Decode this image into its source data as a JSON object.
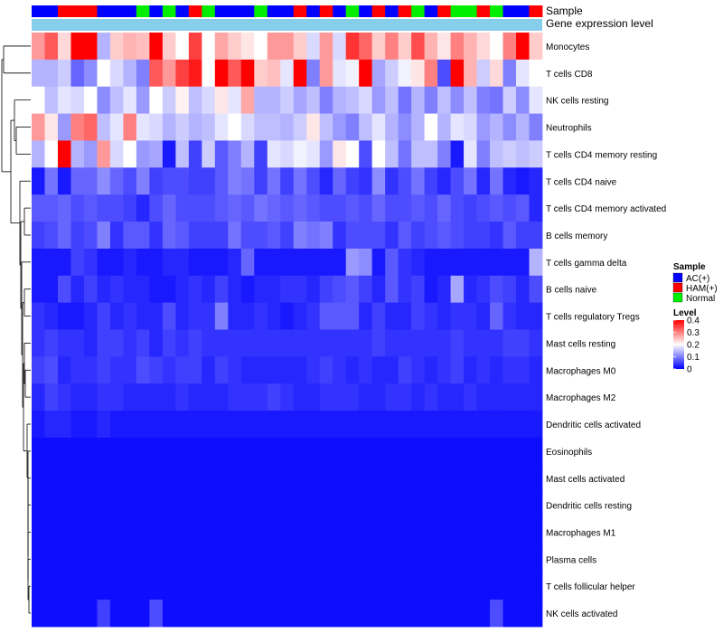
{
  "chart_data": {
    "type": "heatmap",
    "title": "",
    "annotation_rows": [
      "Sample",
      "Gene expression level"
    ],
    "samples": [
      "AC(+)",
      "AC(+)",
      "HAM(+)",
      "HAM(+)",
      "HAM(+)",
      "AC(+)",
      "AC(+)",
      "AC(+)",
      "Normal",
      "AC(+)",
      "Normal",
      "AC(+)",
      "HAM(+)",
      "Normal",
      "AC(+)",
      "AC(+)",
      "AC(+)",
      "Normal",
      "AC(+)",
      "AC(+)",
      "HAM(+)",
      "AC(+)",
      "HAM(+)",
      "AC(+)",
      "Normal",
      "AC(+)",
      "HAM(+)",
      "AC(+)",
      "HAM(+)",
      "Normal",
      "AC(+)",
      "HAM(+)",
      "Normal",
      "Normal",
      "HAM(+)",
      "Normal",
      "AC(+)",
      "AC(+)",
      "HAM(+)"
    ],
    "rows": [
      "Monocytes",
      "T cells CD8",
      "NK cells resting",
      "Neutrophils",
      "T cells CD4 memory resting",
      "T cells CD4 naive",
      "T cells CD4 memory activated",
      "B cells memory",
      "T cells gamma delta",
      "B cells naive",
      "T cells regulatory  Tregs",
      "Mast cells resting",
      "Macrophages M0",
      "Macrophages M2",
      "Dendritic cells activated",
      "Eosinophils",
      "Mast cells activated",
      "Dendritic cells resting",
      "Macrophages M1",
      "Plasma cells",
      "T cells follicular helper",
      "NK cells activated"
    ],
    "values": [
      [
        0.28,
        0.33,
        0.23,
        0.4,
        0.4,
        0.14,
        0.24,
        0.26,
        0.25,
        0.4,
        0.24,
        0.2,
        0.35,
        0.2,
        0.27,
        0.24,
        0.22,
        0.2,
        0.28,
        0.28,
        0.24,
        0.17,
        0.28,
        0.17,
        0.36,
        0.32,
        0.24,
        0.3,
        0.24,
        0.34,
        0.26,
        0.22,
        0.3,
        0.26,
        0.23,
        0.2,
        0.3,
        0.4,
        0.24
      ],
      [
        0.14,
        0.14,
        0.16,
        0.08,
        0.11,
        0.2,
        0.17,
        0.14,
        0.1,
        0.33,
        0.28,
        0.35,
        0.38,
        0.2,
        0.4,
        0.33,
        0.4,
        0.24,
        0.25,
        0.18,
        0.4,
        0.1,
        0.28,
        0.18,
        0.19,
        0.4,
        0.13,
        0.16,
        0.19,
        0.22,
        0.3,
        0.06,
        0.4,
        0.26,
        0.16,
        0.23,
        0.1,
        0.18,
        0.2
      ],
      [
        0.2,
        0.15,
        0.18,
        0.17,
        0.2,
        0.11,
        0.15,
        0.18,
        0.12,
        0.2,
        0.16,
        0.21,
        0.15,
        0.17,
        0.22,
        0.18,
        0.27,
        0.14,
        0.14,
        0.16,
        0.13,
        0.15,
        0.1,
        0.14,
        0.15,
        0.17,
        0.12,
        0.15,
        0.09,
        0.14,
        0.1,
        0.15,
        0.11,
        0.15,
        0.1,
        0.09,
        0.16,
        0.11,
        0.18
      ],
      [
        0.28,
        0.22,
        0.12,
        0.3,
        0.32,
        0.15,
        0.18,
        0.3,
        0.18,
        0.17,
        0.14,
        0.16,
        0.14,
        0.15,
        0.18,
        0.2,
        0.17,
        0.15,
        0.15,
        0.14,
        0.16,
        0.22,
        0.15,
        0.12,
        0.1,
        0.15,
        0.18,
        0.14,
        0.11,
        0.14,
        0.2,
        0.14,
        0.18,
        0.17,
        0.12,
        0.14,
        0.11,
        0.14,
        0.1
      ],
      [
        0.14,
        0.2,
        0.4,
        0.14,
        0.12,
        0.28,
        0.17,
        0.2,
        0.12,
        0.13,
        0.02,
        0.15,
        0.05,
        0.16,
        0.07,
        0.1,
        0.14,
        0.05,
        0.18,
        0.17,
        0.19,
        0.18,
        0.12,
        0.22,
        0.2,
        0.06,
        0.2,
        0.15,
        0.09,
        0.15,
        0.15,
        0.1,
        0.02,
        0.18,
        0.1,
        0.15,
        0.16,
        0.15,
        0.16
      ],
      [
        0.02,
        0.09,
        0.02,
        0.08,
        0.08,
        0.11,
        0.08,
        0.06,
        0.1,
        0.05,
        0.06,
        0.06,
        0.05,
        0.05,
        0.07,
        0.1,
        0.09,
        0.05,
        0.09,
        0.05,
        0.09,
        0.06,
        0.03,
        0.08,
        0.05,
        0.04,
        0.11,
        0.04,
        0.06,
        0.09,
        0.05,
        0.03,
        0.06,
        0.09,
        0.03,
        0.09,
        0.03,
        0.02,
        0.03
      ],
      [
        0.07,
        0.07,
        0.08,
        0.06,
        0.07,
        0.06,
        0.06,
        0.05,
        0.03,
        0.06,
        0.08,
        0.06,
        0.06,
        0.06,
        0.07,
        0.08,
        0.07,
        0.09,
        0.08,
        0.07,
        0.08,
        0.07,
        0.06,
        0.06,
        0.07,
        0.06,
        0.08,
        0.06,
        0.06,
        0.07,
        0.06,
        0.08,
        0.06,
        0.05,
        0.06,
        0.07,
        0.06,
        0.07,
        0.03
      ],
      [
        0.05,
        0.06,
        0.08,
        0.05,
        0.06,
        0.1,
        0.04,
        0.07,
        0.07,
        0.04,
        0.08,
        0.07,
        0.05,
        0.05,
        0.05,
        0.09,
        0.06,
        0.06,
        0.07,
        0.05,
        0.1,
        0.09,
        0.1,
        0.04,
        0.06,
        0.06,
        0.06,
        0.04,
        0.07,
        0.05,
        0.06,
        0.07,
        0.06,
        0.05,
        0.05,
        0.04,
        0.07,
        0.05,
        0.05
      ],
      [
        0.02,
        0.02,
        0.02,
        0.05,
        0.04,
        0.02,
        0.02,
        0.03,
        0.02,
        0.02,
        0.03,
        0.03,
        0.02,
        0.02,
        0.02,
        0.03,
        0.08,
        0.02,
        0.02,
        0.02,
        0.02,
        0.02,
        0.02,
        0.02,
        0.12,
        0.11,
        0.02,
        0.07,
        0.04,
        0.03,
        0.02,
        0.02,
        0.02,
        0.02,
        0.02,
        0.02,
        0.02,
        0.02,
        0.14
      ],
      [
        0.02,
        0.02,
        0.06,
        0.03,
        0.05,
        0.03,
        0.04,
        0.03,
        0.03,
        0.02,
        0.02,
        0.03,
        0.04,
        0.03,
        0.05,
        0.03,
        0.02,
        0.03,
        0.03,
        0.04,
        0.04,
        0.03,
        0.05,
        0.06,
        0.07,
        0.05,
        0.03,
        0.07,
        0.04,
        0.05,
        0.02,
        0.03,
        0.13,
        0.03,
        0.04,
        0.06,
        0.05,
        0.03,
        0.06
      ],
      [
        0.04,
        0.03,
        0.02,
        0.02,
        0.03,
        0.05,
        0.03,
        0.04,
        0.03,
        0.03,
        0.06,
        0.03,
        0.04,
        0.04,
        0.1,
        0.03,
        0.03,
        0.04,
        0.03,
        0.02,
        0.03,
        0.04,
        0.07,
        0.07,
        0.07,
        0.03,
        0.05,
        0.03,
        0.03,
        0.05,
        0.04,
        0.03,
        0.04,
        0.04,
        0.03,
        0.08,
        0.04,
        0.03,
        0.03
      ],
      [
        0.04,
        0.05,
        0.04,
        0.04,
        0.03,
        0.05,
        0.05,
        0.04,
        0.05,
        0.03,
        0.05,
        0.04,
        0.05,
        0.04,
        0.04,
        0.04,
        0.04,
        0.04,
        0.04,
        0.04,
        0.04,
        0.04,
        0.04,
        0.04,
        0.04,
        0.04,
        0.05,
        0.04,
        0.04,
        0.04,
        0.04,
        0.04,
        0.05,
        0.04,
        0.04,
        0.04,
        0.05,
        0.05,
        0.04
      ],
      [
        0.05,
        0.06,
        0.03,
        0.04,
        0.04,
        0.05,
        0.04,
        0.04,
        0.06,
        0.05,
        0.04,
        0.05,
        0.05,
        0.03,
        0.05,
        0.04,
        0.03,
        0.03,
        0.03,
        0.03,
        0.03,
        0.04,
        0.05,
        0.04,
        0.03,
        0.04,
        0.03,
        0.03,
        0.05,
        0.04,
        0.03,
        0.04,
        0.05,
        0.03,
        0.04,
        0.03,
        0.04,
        0.04,
        0.03
      ],
      [
        0.03,
        0.05,
        0.04,
        0.03,
        0.03,
        0.04,
        0.04,
        0.03,
        0.03,
        0.03,
        0.03,
        0.04,
        0.03,
        0.03,
        0.03,
        0.04,
        0.04,
        0.04,
        0.05,
        0.04,
        0.03,
        0.03,
        0.04,
        0.04,
        0.04,
        0.03,
        0.03,
        0.04,
        0.04,
        0.03,
        0.04,
        0.03,
        0.03,
        0.04,
        0.03,
        0.03,
        0.03,
        0.03,
        0.03
      ],
      [
        0.02,
        0.03,
        0.03,
        0.02,
        0.02,
        0.03,
        0.02,
        0.02,
        0.02,
        0.02,
        0.02,
        0.02,
        0.02,
        0.02,
        0.02,
        0.02,
        0.02,
        0.02,
        0.02,
        0.02,
        0.02,
        0.02,
        0.02,
        0.02,
        0.02,
        0.02,
        0.02,
        0.02,
        0.02,
        0.02,
        0.02,
        0.02,
        0.02,
        0.02,
        0.02,
        0.02,
        0.02,
        0.02,
        0.02
      ],
      [
        0.01,
        0.01,
        0.01,
        0.01,
        0.01,
        0.01,
        0.01,
        0.01,
        0.01,
        0.01,
        0.01,
        0.01,
        0.01,
        0.01,
        0.01,
        0.01,
        0.01,
        0.01,
        0.01,
        0.01,
        0.01,
        0.01,
        0.01,
        0.01,
        0.01,
        0.01,
        0.01,
        0.01,
        0.01,
        0.01,
        0.01,
        0.01,
        0.01,
        0.01,
        0.01,
        0.01,
        0.01,
        0.01,
        0.01
      ],
      [
        0.01,
        0.01,
        0.01,
        0.01,
        0.01,
        0.01,
        0.01,
        0.01,
        0.01,
        0.01,
        0.01,
        0.01,
        0.01,
        0.01,
        0.01,
        0.01,
        0.01,
        0.01,
        0.01,
        0.01,
        0.01,
        0.01,
        0.01,
        0.01,
        0.01,
        0.01,
        0.01,
        0.01,
        0.01,
        0.01,
        0.01,
        0.01,
        0.01,
        0.01,
        0.01,
        0.01,
        0.01,
        0.01,
        0.01
      ],
      [
        0.01,
        0.01,
        0.01,
        0.01,
        0.01,
        0.01,
        0.01,
        0.01,
        0.01,
        0.01,
        0.01,
        0.01,
        0.01,
        0.01,
        0.01,
        0.01,
        0.01,
        0.01,
        0.01,
        0.01,
        0.01,
        0.01,
        0.01,
        0.01,
        0.01,
        0.01,
        0.01,
        0.01,
        0.01,
        0.01,
        0.01,
        0.01,
        0.01,
        0.01,
        0.01,
        0.01,
        0.01,
        0.01,
        0.01
      ],
      [
        0.01,
        0.01,
        0.01,
        0.01,
        0.01,
        0.01,
        0.01,
        0.01,
        0.01,
        0.01,
        0.01,
        0.01,
        0.01,
        0.01,
        0.01,
        0.01,
        0.01,
        0.01,
        0.01,
        0.01,
        0.01,
        0.01,
        0.01,
        0.01,
        0.01,
        0.01,
        0.01,
        0.01,
        0.01,
        0.01,
        0.01,
        0.01,
        0.01,
        0.01,
        0.01,
        0.01,
        0.01,
        0.01,
        0.01
      ],
      [
        0.01,
        0.01,
        0.01,
        0.01,
        0.01,
        0.01,
        0.01,
        0.01,
        0.01,
        0.01,
        0.01,
        0.01,
        0.01,
        0.01,
        0.01,
        0.01,
        0.01,
        0.01,
        0.01,
        0.01,
        0.01,
        0.01,
        0.01,
        0.01,
        0.01,
        0.01,
        0.01,
        0.01,
        0.01,
        0.01,
        0.01,
        0.01,
        0.01,
        0.01,
        0.01,
        0.01,
        0.01,
        0.01,
        0.01
      ],
      [
        0.01,
        0.01,
        0.01,
        0.01,
        0.01,
        0.01,
        0.01,
        0.01,
        0.01,
        0.01,
        0.01,
        0.01,
        0.01,
        0.01,
        0.01,
        0.01,
        0.01,
        0.01,
        0.01,
        0.01,
        0.01,
        0.01,
        0.01,
        0.01,
        0.01,
        0.01,
        0.01,
        0.01,
        0.01,
        0.01,
        0.01,
        0.01,
        0.01,
        0.01,
        0.01,
        0.01,
        0.01,
        0.01,
        0.01
      ],
      [
        0.01,
        0.01,
        0.01,
        0.01,
        0.01,
        0.05,
        0.01,
        0.01,
        0.01,
        0.06,
        0.01,
        0.01,
        0.01,
        0.01,
        0.01,
        0.01,
        0.01,
        0.01,
        0.01,
        0.01,
        0.01,
        0.01,
        0.01,
        0.01,
        0.01,
        0.01,
        0.01,
        0.01,
        0.01,
        0.01,
        0.01,
        0.01,
        0.01,
        0.01,
        0.01,
        0.06,
        0.01,
        0.01,
        0.01
      ]
    ],
    "legend": {
      "sample_title": "Sample",
      "sample_entries": [
        {
          "label": "AC(+)",
          "color": "#0000ff"
        },
        {
          "label": "HAM(+)",
          "color": "#ff0000"
        },
        {
          "label": "Normal",
          "color": "#00ee00"
        }
      ],
      "level_title": "Level",
      "level_ticks": [
        "0.4",
        "0.3",
        "0.2",
        "0.1",
        "0"
      ],
      "level_range": [
        0,
        0.4
      ],
      "placement": "right"
    },
    "colors": {
      "low": "#0000ff",
      "mid": "#ffffff",
      "high": "#ff0000",
      "gene_expression_bar": "#87ceeb"
    }
  }
}
